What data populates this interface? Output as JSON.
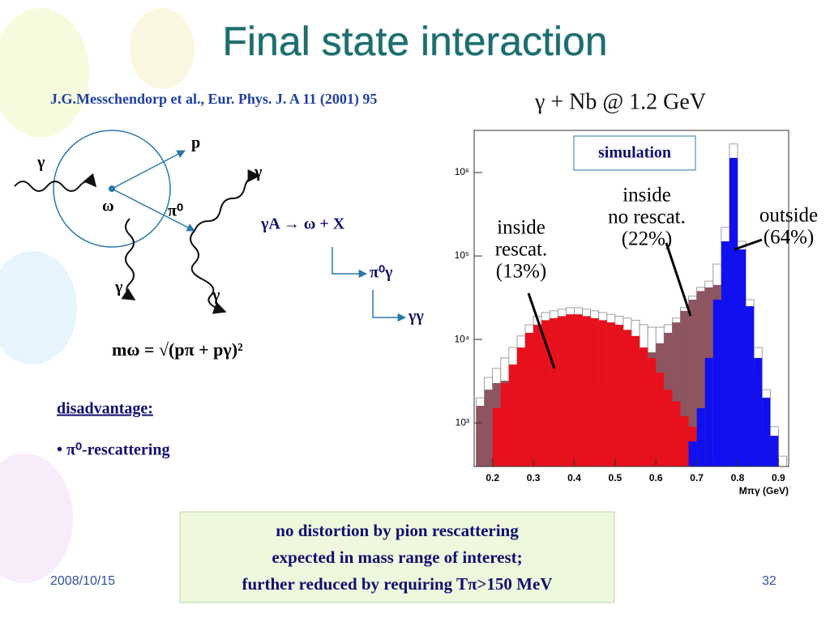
{
  "title": "Final state interaction",
  "citation": "J.G.Messchendorp et al., Eur. Phys. J. A 11 (2001) 95",
  "reaction": "γ + Nb @ 1.2 GeV",
  "diagram": {
    "labels": [
      "γ",
      "p",
      "ω",
      "π⁰",
      "γ",
      "γ",
      "γ"
    ],
    "reaction": "γA → ω + X",
    "decay_1": "π⁰γ",
    "decay_2": "γγ",
    "formula": "mω = √(pπ + pγ)²"
  },
  "disadvantage": "disadvantage:",
  "bullet": "• π⁰-rescattering",
  "note": [
    "no distortion by pion rescattering",
    "expected in mass range of interest;",
    "further reduced by requiring Tπ>150 MeV"
  ],
  "footer": {
    "date": "2008/10/15",
    "page": "32"
  },
  "chart_data": {
    "type": "histogram",
    "annotation": "simulation",
    "xlabel": "Mπγ (GeV)",
    "log_y": true,
    "bins": [
      0.16,
      0.18,
      0.2,
      0.22,
      0.24,
      0.26,
      0.28,
      0.3,
      0.32,
      0.34,
      0.36,
      0.38,
      0.4,
      0.42,
      0.44,
      0.46,
      0.48,
      0.5,
      0.52,
      0.54,
      0.56,
      0.58,
      0.6,
      0.62,
      0.64,
      0.66,
      0.68,
      0.7,
      0.72,
      0.74,
      0.76,
      0.78,
      0.8,
      0.82,
      0.84,
      0.86,
      0.88,
      0.9,
      0.92
    ],
    "xlim": [
      0.155,
      0.925
    ],
    "xticks": [
      0.2,
      0.3,
      0.4,
      0.5,
      0.6,
      0.7,
      0.8,
      0.9
    ],
    "ylim": [
      300,
      3200000
    ],
    "yticks": [
      {
        "value": 1000,
        "label": "10³"
      },
      {
        "value": 10000,
        "label": "10⁴"
      },
      {
        "value": 100000,
        "label": "10⁵"
      },
      {
        "value": 1000000,
        "label": "10⁶"
      }
    ],
    "series": [
      {
        "color": "#888888",
        "outline": true,
        "values": [
          2000,
          3500,
          4500,
          6000,
          8000,
          11000,
          15000,
          19000,
          21000,
          22000,
          23000,
          24000,
          24000,
          23000,
          22000,
          21000,
          20000,
          19000,
          18000,
          17000,
          15000,
          14000,
          14000,
          15000,
          18000,
          24000,
          33000,
          42000,
          50000,
          80000,
          220000,
          2200000,
          150000,
          30000,
          8000,
          2500,
          900,
          400
        ]
      },
      {
        "label_lines": [
          "inside",
          "no rescat."
        ],
        "share": "(22%)",
        "color": "#8c5560",
        "values": [
          1600,
          2500,
          3000,
          3200,
          3100,
          3000,
          3000,
          3000,
          3100,
          3000,
          3000,
          3000,
          3100,
          3000,
          3000,
          3000,
          3000,
          3200,
          3500,
          4500,
          5500,
          7000,
          9000,
          12000,
          16000,
          22000,
          30000,
          38000,
          42000,
          45000,
          60000,
          70000,
          15000,
          4000,
          1500,
          800,
          500,
          300
        ]
      },
      {
        "label_lines": [
          "inside",
          "rescat."
        ],
        "share": "(13%)",
        "color": "#e8101c",
        "values": [
          300,
          300,
          1500,
          3000,
          5000,
          8000,
          12000,
          15000,
          17000,
          18000,
          19000,
          20000,
          20000,
          19000,
          18000,
          17000,
          16000,
          15000,
          13000,
          11000,
          8000,
          6000,
          4000,
          2500,
          1800,
          1200,
          900,
          600,
          400,
          300,
          300,
          300,
          300,
          300,
          300,
          300,
          300,
          300
        ]
      },
      {
        "label_lines": [
          "outside"
        ],
        "share": "(64%)",
        "color": "#1010f0",
        "values": [
          300,
          300,
          300,
          300,
          300,
          300,
          300,
          300,
          300,
          300,
          300,
          300,
          300,
          300,
          300,
          300,
          300,
          300,
          300,
          300,
          300,
          300,
          300,
          300,
          300,
          300,
          600,
          1500,
          6000,
          30000,
          150000,
          1500000,
          120000,
          25000,
          6000,
          2000,
          700,
          300
        ]
      }
    ]
  }
}
